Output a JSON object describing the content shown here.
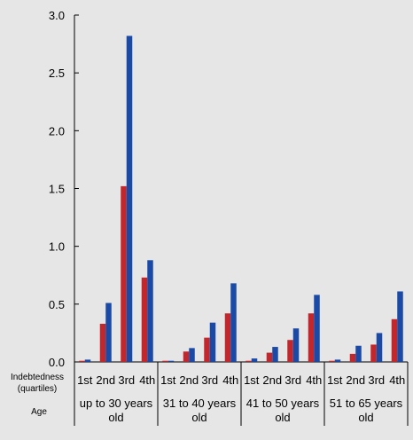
{
  "chart_data": {
    "type": "bar",
    "title": "",
    "xlabel": "",
    "ylabel": "",
    "ylim": [
      0,
      3.0
    ],
    "yticks": [
      "0.0",
      "0.5",
      "1.0",
      "1.5",
      "2.0",
      "2.5",
      "3.0"
    ],
    "grid": false,
    "legend": "none",
    "row_labels": {
      "quartiles": "Indebtedness (quartiles)",
      "age": "Age"
    },
    "groups": [
      {
        "label": "up to 30 years old",
        "categories": [
          "1st",
          "2nd",
          "3rd",
          "4th"
        ]
      },
      {
        "label": "31 to 40 years old",
        "categories": [
          "1st",
          "2nd",
          "3rd",
          "4th"
        ]
      },
      {
        "label": "41 to 50 years old",
        "categories": [
          "1st",
          "2nd",
          "3rd",
          "4th"
        ]
      },
      {
        "label": "51 to 65 years old",
        "categories": [
          "1st",
          "2nd",
          "3rd",
          "4th"
        ]
      }
    ],
    "series": [
      {
        "color": "#c0282d",
        "values": [
          [
            0.01,
            0.33,
            1.52,
            0.73
          ],
          [
            0.01,
            0.09,
            0.21,
            0.42
          ],
          [
            0.01,
            0.08,
            0.19,
            0.42
          ],
          [
            0.01,
            0.07,
            0.15,
            0.37
          ]
        ]
      },
      {
        "color": "#1a4aa6",
        "values": [
          [
            0.02,
            0.51,
            2.82,
            0.88
          ],
          [
            0.01,
            0.12,
            0.34,
            0.68
          ],
          [
            0.03,
            0.13,
            0.29,
            0.58
          ],
          [
            0.02,
            0.14,
            0.25,
            0.61
          ]
        ]
      }
    ]
  }
}
